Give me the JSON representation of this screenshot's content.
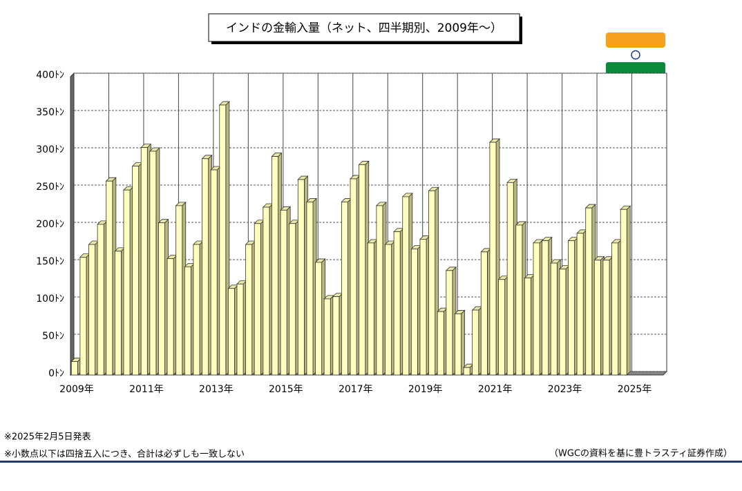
{
  "chart_data": {
    "type": "bar3d",
    "title": "インドの金輸入量（ネット、四半期別、2009年～）",
    "categories": [
      "2009年",
      null,
      null,
      null,
      null,
      null,
      null,
      null,
      "2011年",
      null,
      null,
      null,
      null,
      null,
      null,
      null,
      "2013年",
      null,
      null,
      null,
      null,
      null,
      null,
      null,
      "2015年",
      null,
      null,
      null,
      null,
      null,
      null,
      null,
      "2017年",
      null,
      null,
      null,
      null,
      null,
      null,
      null,
      "2019年",
      null,
      null,
      null,
      null,
      null,
      null,
      null,
      "2021年",
      null,
      null,
      null,
      null,
      null,
      null,
      null,
      "2023年",
      null,
      null,
      null,
      null,
      null,
      null,
      null,
      "2025年",
      null,
      null,
      null
    ],
    "values": [
      18,
      158,
      175,
      202,
      260,
      166,
      248,
      280,
      305,
      300,
      204,
      156,
      227,
      145,
      175,
      290,
      275,
      362,
      116,
      122,
      175,
      203,
      225,
      293,
      221,
      203,
      262,
      232,
      151,
      102,
      105,
      232,
      263,
      282,
      177,
      227,
      175,
      192,
      239,
      169,
      182,
      247,
      85,
      140,
      82,
      10,
      87,
      165,
      312,
      128,
      258,
      201,
      130,
      177,
      180,
      150,
      142,
      180,
      190,
      224,
      154,
      154,
      177,
      222,
      null,
      null,
      null,
      null
    ],
    "color": "#ffffc0",
    "ylim": [
      0,
      400
    ],
    "yticks": [
      {
        "value": 0,
        "label": "0ﾄﾝ"
      },
      {
        "value": 50,
        "label": "50ﾄﾝ"
      },
      {
        "value": 100,
        "label": "100ﾄﾝ"
      },
      {
        "value": 150,
        "label": "150ﾄﾝ"
      },
      {
        "value": 200,
        "label": "200ﾄﾝ"
      },
      {
        "value": 250,
        "label": "250ﾄﾝ"
      },
      {
        "value": 300,
        "label": "300ﾄﾝ"
      },
      {
        "value": 350,
        "label": "350ﾄﾝ"
      },
      {
        "value": 400,
        "label": "400ﾄﾝ"
      }
    ],
    "grid": true,
    "notes": [
      "※2025年2月5日発表",
      "※小数点以下は四捨五入につき、合計は必ずしも一致しない"
    ],
    "source": "（WGCの資料を基に豊トラスティ証券作成）"
  }
}
